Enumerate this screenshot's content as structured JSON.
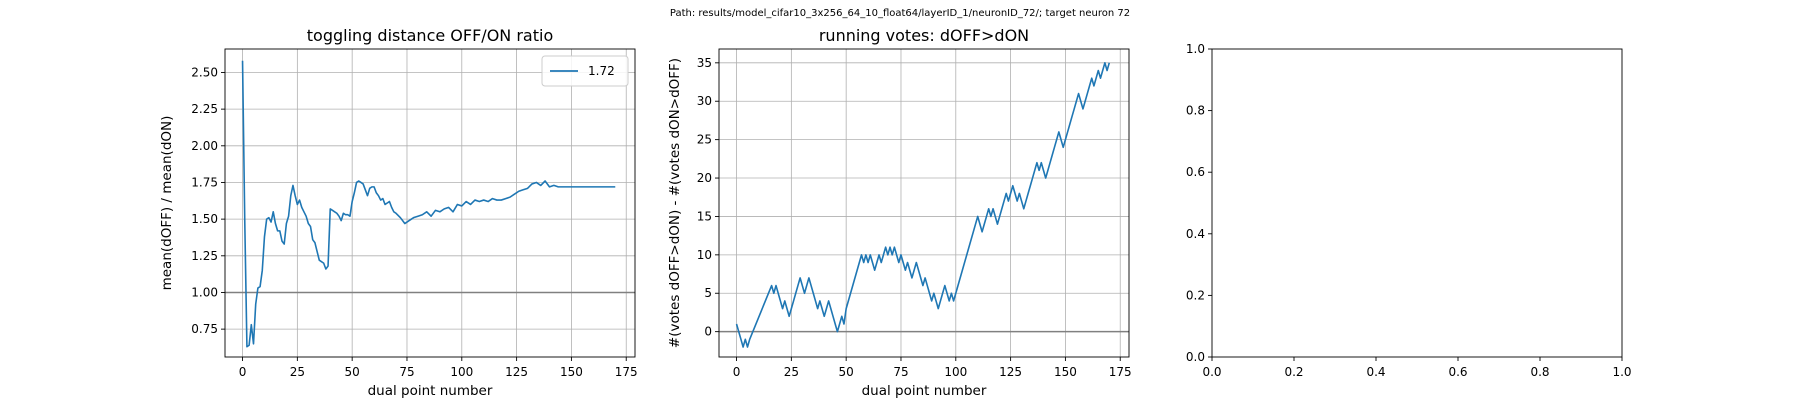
{
  "figure": {
    "suptitle": "Path: results/model_cifar10_3x256_64_10_float64/layerID_1/neuronID_72/; target neuron 72"
  },
  "chart_data": [
    {
      "type": "line",
      "title": "toggling distance OFF/ON ratio",
      "xlabel": "dual point number",
      "ylabel": "mean(dOFF) / mean(dON)",
      "xlim": [
        -8,
        179
      ],
      "ylim": [
        0.56,
        2.66
      ],
      "xticks": [
        0,
        25,
        50,
        75,
        100,
        125,
        150,
        175
      ],
      "yticks": [
        0.75,
        1.0,
        1.25,
        1.5,
        1.75,
        2.0,
        2.25,
        2.5
      ],
      "ytick_labels": [
        "0.75",
        "1.00",
        "1.25",
        "1.50",
        "1.75",
        "2.00",
        "2.25",
        "2.50"
      ],
      "grid": true,
      "hline": 1.0,
      "legend_position": "top-right",
      "colors": {
        "series": "#1f77b4",
        "hline": "#808080",
        "grid": "#b0b0b0"
      },
      "series": [
        {
          "name": "1.72",
          "x": [
            0,
            1,
            2,
            3,
            4,
            5,
            6,
            7,
            8,
            9,
            10,
            11,
            12,
            13,
            14,
            15,
            16,
            17,
            18,
            19,
            20,
            21,
            22,
            23,
            24,
            25,
            26,
            27,
            28,
            29,
            30,
            31,
            32,
            33,
            34,
            35,
            36,
            37,
            38,
            39,
            40,
            41,
            42,
            43,
            44,
            45,
            46,
            47,
            48,
            49,
            50,
            51,
            52,
            53,
            54,
            55,
            56,
            57,
            58,
            59,
            60,
            61,
            62,
            63,
            64,
            65,
            66,
            67,
            68,
            69,
            70,
            72,
            74,
            76,
            78,
            80,
            82,
            84,
            86,
            88,
            90,
            92,
            94,
            96,
            98,
            100,
            102,
            104,
            106,
            108,
            110,
            112,
            114,
            116,
            118,
            120,
            122,
            124,
            126,
            128,
            130,
            132,
            134,
            136,
            138,
            140,
            142,
            144,
            146,
            148,
            150,
            152,
            154,
            156,
            158,
            160,
            162,
            164,
            166,
            168,
            170
          ],
          "values": [
            2.58,
            1.5,
            0.63,
            0.64,
            0.78,
            0.65,
            0.92,
            1.03,
            1.04,
            1.15,
            1.38,
            1.5,
            1.51,
            1.48,
            1.55,
            1.47,
            1.42,
            1.42,
            1.35,
            1.33,
            1.47,
            1.52,
            1.66,
            1.73,
            1.66,
            1.6,
            1.63,
            1.58,
            1.55,
            1.52,
            1.47,
            1.45,
            1.36,
            1.34,
            1.28,
            1.22,
            1.21,
            1.2,
            1.16,
            1.18,
            1.57,
            1.56,
            1.55,
            1.54,
            1.52,
            1.49,
            1.54,
            1.53,
            1.53,
            1.52,
            1.62,
            1.68,
            1.75,
            1.76,
            1.75,
            1.74,
            1.7,
            1.66,
            1.71,
            1.72,
            1.72,
            1.68,
            1.66,
            1.63,
            1.64,
            1.6,
            1.61,
            1.62,
            1.58,
            1.55,
            1.54,
            1.51,
            1.47,
            1.49,
            1.51,
            1.52,
            1.53,
            1.55,
            1.52,
            1.56,
            1.55,
            1.57,
            1.58,
            1.55,
            1.6,
            1.59,
            1.62,
            1.6,
            1.63,
            1.62,
            1.63,
            1.62,
            1.64,
            1.63,
            1.63,
            1.64,
            1.65,
            1.67,
            1.69,
            1.7,
            1.71,
            1.74,
            1.75,
            1.73,
            1.76,
            1.72,
            1.73,
            1.72,
            1.72,
            1.72,
            1.72,
            1.72,
            1.72,
            1.72,
            1.72,
            1.72,
            1.72,
            1.72,
            1.72,
            1.72,
            1.72
          ]
        }
      ]
    },
    {
      "type": "line",
      "title": "running votes: dOFF>dON",
      "xlabel": "dual point number",
      "ylabel": "#(votes dOFF>dON) - #(votes dON>dOFF)",
      "xlim": [
        -8,
        179
      ],
      "ylim": [
        -3.3,
        36.8
      ],
      "xticks": [
        0,
        25,
        50,
        75,
        100,
        125,
        150,
        175
      ],
      "yticks": [
        0,
        5,
        10,
        15,
        20,
        25,
        30,
        35
      ],
      "ytick_labels": [
        "0",
        "5",
        "10",
        "15",
        "20",
        "25",
        "30",
        "35"
      ],
      "grid": true,
      "hline": 0,
      "colors": {
        "series": "#1f77b4",
        "hline": "#808080",
        "grid": "#b0b0b0"
      },
      "series": [
        {
          "x": [
            0,
            2,
            3,
            4,
            5,
            6,
            16,
            17,
            18,
            19,
            20,
            21,
            22,
            23,
            24,
            25,
            26,
            27,
            28,
            29,
            30,
            31,
            32,
            33,
            34,
            35,
            36,
            37,
            38,
            39,
            40,
            41,
            42,
            43,
            44,
            45,
            46,
            47,
            48,
            49,
            50,
            57,
            58,
            59,
            60,
            61,
            62,
            63,
            64,
            65,
            66,
            67,
            68,
            69,
            70,
            71,
            72,
            73,
            74,
            75,
            76,
            77,
            78,
            79,
            80,
            81,
            82,
            83,
            84,
            85,
            86,
            87,
            88,
            89,
            90,
            91,
            92,
            93,
            94,
            95,
            96,
            97,
            98,
            99,
            100,
            110,
            111,
            112,
            113,
            114,
            115,
            116,
            117,
            118,
            119,
            120,
            121,
            122,
            123,
            124,
            125,
            126,
            127,
            128,
            129,
            130,
            131,
            132,
            133,
            134,
            135,
            136,
            137,
            138,
            139,
            140,
            141,
            142,
            143,
            144,
            145,
            146,
            147,
            148,
            149,
            150,
            151,
            152,
            153,
            154,
            155,
            156,
            157,
            158,
            159,
            160,
            161,
            162,
            163,
            164,
            165,
            166,
            167,
            168,
            169,
            170
          ],
          "values": [
            1,
            -1,
            -2,
            -1,
            -2,
            -1,
            6,
            5,
            6,
            5,
            4,
            3,
            4,
            3,
            2,
            3,
            4,
            5,
            6,
            7,
            6,
            5,
            6,
            7,
            6,
            5,
            4,
            3,
            4,
            3,
            2,
            3,
            4,
            3,
            2,
            1,
            0,
            1,
            2,
            1,
            3,
            10,
            9,
            10,
            9,
            10,
            9,
            8,
            9,
            10,
            9,
            10,
            11,
            10,
            11,
            10,
            11,
            10,
            9,
            10,
            9,
            8,
            9,
            8,
            7,
            8,
            9,
            8,
            7,
            6,
            7,
            6,
            5,
            4,
            5,
            4,
            3,
            4,
            5,
            6,
            5,
            4,
            5,
            4,
            5,
            15,
            14,
            13,
            14,
            15,
            16,
            15,
            16,
            15,
            14,
            15,
            16,
            17,
            18,
            17,
            18,
            19,
            18,
            17,
            18,
            17,
            16,
            17,
            18,
            19,
            20,
            21,
            22,
            21,
            22,
            21,
            20,
            21,
            22,
            23,
            24,
            25,
            26,
            25,
            24,
            25,
            26,
            27,
            28,
            29,
            30,
            31,
            30,
            29,
            30,
            31,
            32,
            33,
            32,
            33,
            34,
            33,
            34,
            35,
            34,
            35
          ]
        }
      ]
    },
    {
      "type": "line",
      "title": "",
      "xlabel": "",
      "ylabel": "",
      "xlim": [
        0,
        1
      ],
      "ylim": [
        0,
        1
      ],
      "xticks": [
        0,
        0.2,
        0.4,
        0.6,
        0.8,
        1.0
      ],
      "xtick_labels": [
        "0.0",
        "0.2",
        "0.4",
        "0.6",
        "0.8",
        "1.0"
      ],
      "yticks": [
        0,
        0.2,
        0.4,
        0.6,
        0.8,
        1.0
      ],
      "ytick_labels": [
        "0.0",
        "0.2",
        "0.4",
        "0.6",
        "0.8",
        "1.0"
      ],
      "grid": false,
      "series": []
    }
  ]
}
